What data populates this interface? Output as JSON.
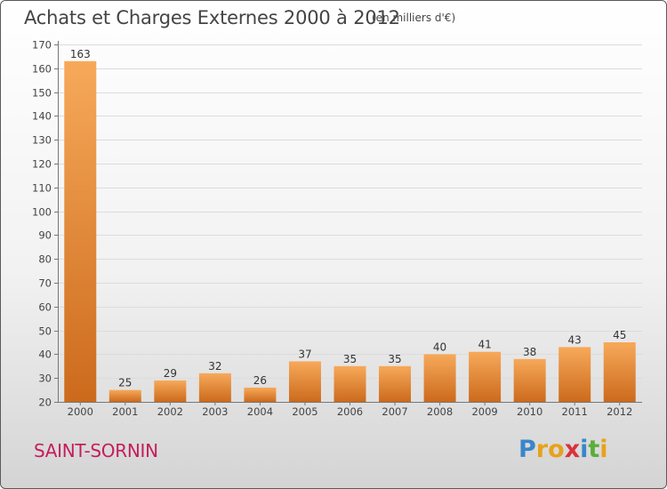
{
  "title": "Achats et Charges Externes 2000 à 2012",
  "unit": "(en milliers d'€)",
  "commune": "SAINT-SORNIN",
  "logo": {
    "letters": [
      "P",
      "r",
      "o",
      "x",
      "i",
      "t",
      "i"
    ],
    "colors": [
      "#3a86c8",
      "#e8a21a",
      "#e8a21a",
      "#d9323a",
      "#3a86c8",
      "#5aae3a",
      "#e8a21a"
    ]
  },
  "colors": {
    "bar_light": "#f7a95a",
    "bar_dark": "#cc6a1c",
    "title": "#444444",
    "commune": "#c41e5b"
  },
  "chart_data": {
    "type": "bar",
    "title": "Achats et Charges Externes 2000 à 2012",
    "unit": "(en milliers d'€)",
    "categories": [
      "2000",
      "2001",
      "2002",
      "2003",
      "2004",
      "2005",
      "2006",
      "2007",
      "2008",
      "2009",
      "2010",
      "2011",
      "2012"
    ],
    "values": [
      163,
      25,
      29,
      32,
      26,
      37,
      35,
      35,
      40,
      41,
      38,
      43,
      45
    ],
    "ylim": [
      20,
      170
    ],
    "yticks": [
      20,
      30,
      40,
      50,
      60,
      70,
      80,
      90,
      100,
      110,
      120,
      130,
      140,
      150,
      160,
      170
    ],
    "grid": true,
    "legend": "none"
  }
}
